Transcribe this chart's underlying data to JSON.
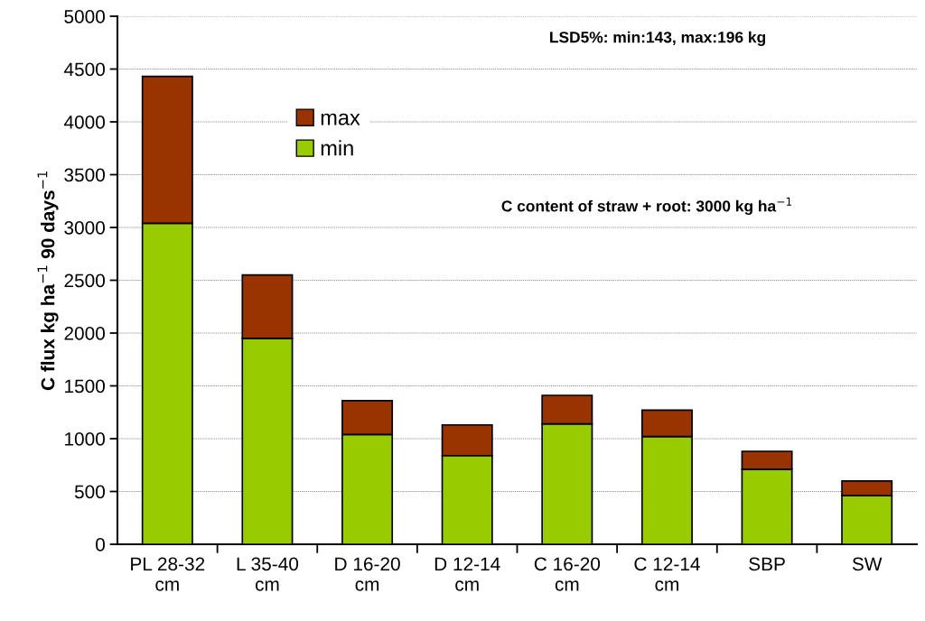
{
  "chart_data": {
    "type": "bar",
    "stacked": true,
    "categories": [
      "PL 28-32\ncm",
      "L 35-40\ncm",
      "D 16-20\ncm",
      "D 12-14\ncm",
      "C 16-20\ncm",
      "C 12-14\ncm",
      "SBP",
      "SW"
    ],
    "series": [
      {
        "name": "min",
        "color": "#99cc00",
        "values": [
          3040,
          1950,
          1040,
          840,
          1140,
          1020,
          710,
          460
        ]
      },
      {
        "name": "max",
        "color": "#993300",
        "values": [
          1390,
          600,
          320,
          290,
          270,
          250,
          170,
          140
        ]
      }
    ],
    "ylabel": "C flux kg ha$^{−1}$ 90 days$^{−1}$",
    "ylim": [
      0,
      5000
    ],
    "yticks": [
      0,
      500,
      1000,
      1500,
      2000,
      2500,
      3000,
      3500,
      4000,
      4500,
      5000
    ],
    "grid": "y",
    "legend": "top left",
    "annotations": [
      {
        "text": "LSD5%: min:143, max:196 kg"
      },
      {
        "text": "C content of straw + root: 3000 kg ha$^{−1}$"
      }
    ]
  }
}
